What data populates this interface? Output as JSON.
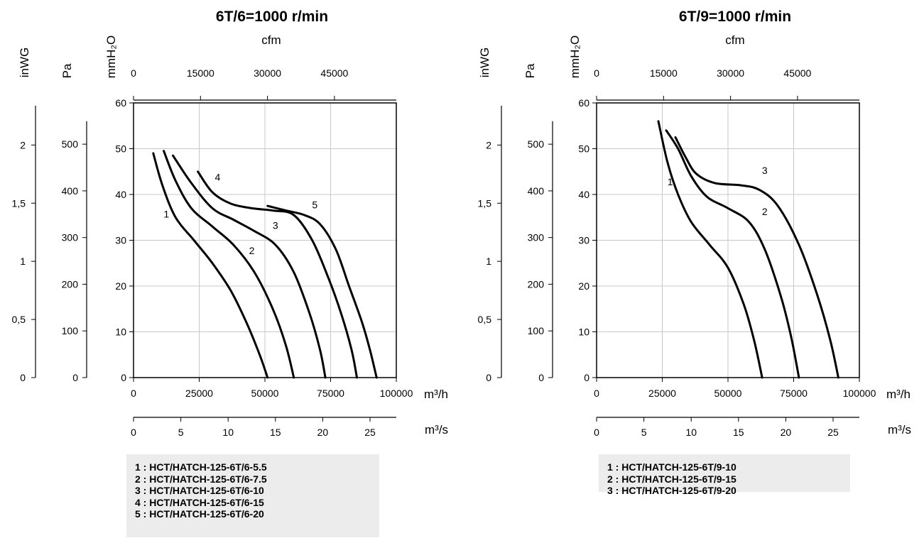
{
  "chart_data": [
    {
      "type": "line",
      "title": "6T/6=1000 r/min",
      "x_axis": {
        "label": "m³/h",
        "range": [
          0,
          100000
        ],
        "ticks": [
          0,
          25000,
          50000,
          75000,
          100000
        ]
      },
      "x_axis_secondary_bottom": {
        "label": "m³/s",
        "ticks": [
          0,
          5,
          10,
          15,
          20,
          25
        ]
      },
      "x_axis_secondary_top": {
        "label": "cfm",
        "ticks": [
          0,
          15000,
          30000,
          45000
        ]
      },
      "y_axis": {
        "label": "mmH₂O",
        "range": [
          0,
          60
        ],
        "ticks": [
          0,
          10,
          20,
          30,
          40,
          50,
          60
        ]
      },
      "y_axis_secondary_pa": {
        "label": "Pa",
        "ticks": [
          0,
          100,
          200,
          300,
          400,
          500
        ]
      },
      "y_axis_secondary_inwg": {
        "label": "inWG",
        "ticks": [
          "0",
          "0,5",
          "1",
          "1,5",
          "2"
        ],
        "values": [
          0,
          0.5,
          1,
          1.5,
          2
        ]
      },
      "grid": true,
      "series": [
        {
          "name": "1",
          "label_at": [
            12500,
            35
          ],
          "points": [
            [
              7500,
              49
            ],
            [
              11000,
              42
            ],
            [
              16000,
              35
            ],
            [
              23000,
              30
            ],
            [
              30000,
              25
            ],
            [
              37000,
              19
            ],
            [
              43000,
              12
            ],
            [
              48000,
              5
            ],
            [
              51000,
              0
            ]
          ]
        },
        {
          "name": "2",
          "label_at": [
            45000,
            27
          ],
          "points": [
            [
              11500,
              49.5
            ],
            [
              16000,
              43
            ],
            [
              22000,
              37
            ],
            [
              30000,
              33
            ],
            [
              38000,
              29
            ],
            [
              46000,
              23
            ],
            [
              53000,
              15
            ],
            [
              58000,
              7
            ],
            [
              61000,
              0
            ]
          ]
        },
        {
          "name": "3",
          "label_at": [
            54000,
            32.5
          ],
          "points": [
            [
              15000,
              48.5
            ],
            [
              22000,
              42.5
            ],
            [
              30000,
              37
            ],
            [
              38000,
              34.5
            ],
            [
              46000,
              32
            ],
            [
              54000,
              29
            ],
            [
              61000,
              23
            ],
            [
              67000,
              14
            ],
            [
              71000,
              6
            ],
            [
              73000,
              0
            ]
          ]
        },
        {
          "name": "4",
          "label_at": [
            32000,
            43
          ],
          "points": [
            [
              24500,
              45
            ],
            [
              30000,
              40.5
            ],
            [
              37000,
              38
            ],
            [
              45000,
              37
            ],
            [
              53000,
              36.5
            ],
            [
              61000,
              35.5
            ],
            [
              68000,
              30
            ],
            [
              74000,
              22
            ],
            [
              79000,
              14
            ],
            [
              83000,
              6
            ],
            [
              85000,
              0
            ]
          ]
        },
        {
          "name": "5",
          "label_at": [
            69000,
            37
          ],
          "points": [
            [
              51000,
              37.5
            ],
            [
              58000,
              36.5
            ],
            [
              65000,
              35.5
            ],
            [
              71000,
              33.5
            ],
            [
              77000,
              28
            ],
            [
              82000,
              20
            ],
            [
              87000,
              12
            ],
            [
              90000,
              6
            ],
            [
              92500,
              0
            ]
          ]
        }
      ],
      "legend": [
        "1 : HCT/HATCH-125-6T/6-5.5",
        "2 : HCT/HATCH-125-6T/6-7.5",
        "3 : HCT/HATCH-125-6T/6-10",
        "4 : HCT/HATCH-125-6T/6-15",
        "5 : HCT/HATCH-125-6T/6-20"
      ]
    },
    {
      "type": "line",
      "title": "6T/9=1000 r/min",
      "x_axis": {
        "label": "m³/h",
        "range": [
          0,
          100000
        ],
        "ticks": [
          0,
          25000,
          50000,
          75000,
          100000
        ]
      },
      "x_axis_secondary_bottom": {
        "label": "m³/s",
        "ticks": [
          0,
          5,
          10,
          15,
          20,
          25
        ]
      },
      "x_axis_secondary_top": {
        "label": "cfm",
        "ticks": [
          0,
          15000,
          30000,
          45000
        ]
      },
      "y_axis": {
        "label": "mmH₂O",
        "range": [
          0,
          60
        ],
        "ticks": [
          0,
          10,
          20,
          30,
          40,
          50,
          60
        ]
      },
      "y_axis_secondary_pa": {
        "label": "Pa",
        "ticks": [
          0,
          100,
          200,
          300,
          400,
          500
        ]
      },
      "y_axis_secondary_inwg": {
        "label": "inWG",
        "ticks": [
          "0",
          "0,5",
          "1",
          "1,5",
          "2"
        ],
        "values": [
          0,
          0.5,
          1,
          1.5,
          2
        ]
      },
      "grid": true,
      "series": [
        {
          "name": "1",
          "label_at": [
            28000,
            42
          ],
          "points": [
            [
              23500,
              56
            ],
            [
              27000,
              47
            ],
            [
              31000,
              40
            ],
            [
              36000,
              34
            ],
            [
              43000,
              29
            ],
            [
              50000,
              24
            ],
            [
              56000,
              16
            ],
            [
              60000,
              8
            ],
            [
              63000,
              0
            ]
          ]
        },
        {
          "name": "2",
          "label_at": [
            64000,
            35.5
          ],
          "points": [
            [
              26500,
              54
            ],
            [
              31000,
              50
            ],
            [
              36000,
              44
            ],
            [
              42000,
              39.5
            ],
            [
              50000,
              37
            ],
            [
              58000,
              34
            ],
            [
              64000,
              28
            ],
            [
              70000,
              18
            ],
            [
              74000,
              9
            ],
            [
              77000,
              0
            ]
          ]
        },
        {
          "name": "3",
          "label_at": [
            64000,
            44.5
          ],
          "points": [
            [
              30000,
              52.5
            ],
            [
              34000,
              48
            ],
            [
              38000,
              44.5
            ],
            [
              45000,
              42.5
            ],
            [
              55000,
              42
            ],
            [
              62000,
              41
            ],
            [
              69000,
              37.5
            ],
            [
              77000,
              29
            ],
            [
              84000,
              18
            ],
            [
              89000,
              8
            ],
            [
              92000,
              0
            ]
          ]
        }
      ],
      "legend": [
        "1 : HCT/HATCH-125-6T/9-10",
        "2 : HCT/HATCH-125-6T/9-15",
        "3 : HCT/HATCH-125-6T/9-20"
      ]
    }
  ]
}
